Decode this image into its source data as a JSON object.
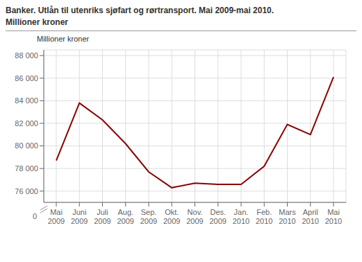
{
  "chart_data": {
    "type": "line",
    "title": "Banker. Utlån til utenriks sjøfart og rørtransport. Mai 2009-mai 2010.",
    "subtitle": "Millioner kroner",
    "y_label": "Millioner kroner",
    "categories": [
      "Mai\n2009",
      "Juni\n2009",
      "Juli\n2009",
      "Aug.\n2009",
      "Sep.\n2009",
      "Okt.\n2009",
      "Nov.\n2009",
      "Des.\n2009",
      "Jan.\n2010",
      "Feb.\n2010",
      "Mars\n2010",
      "April\n2010",
      "Mai\n2010"
    ],
    "values": [
      78700,
      83800,
      82300,
      80200,
      77700,
      76300,
      76700,
      76600,
      76600,
      78200,
      81900,
      81000,
      86100
    ],
    "color": "#8B0000",
    "ylim": [
      75000,
      88500
    ],
    "yticks": [
      {
        "value": 76000,
        "label": "76 000"
      },
      {
        "value": 78000,
        "label": "78 000"
      },
      {
        "value": 80000,
        "label": "80 000"
      },
      {
        "value": 82000,
        "label": "82 000"
      },
      {
        "value": 84000,
        "label": "84 000"
      },
      {
        "value": 86000,
        "label": "86 000"
      },
      {
        "value": 88000,
        "label": "88 000"
      }
    ],
    "annotations": [
      "0"
    ],
    "grid": true
  }
}
